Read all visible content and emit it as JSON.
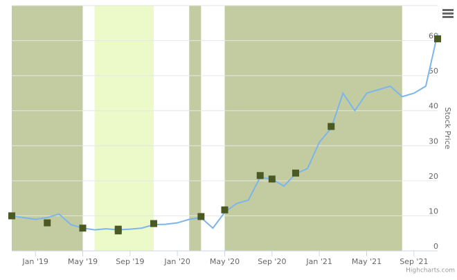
{
  "chart_data": {
    "type": "line",
    "y_axis_title": "Stock Price",
    "credits": "Highcharts.com",
    "xlim": [
      "2018-11",
      "2021-11"
    ],
    "xticks": [
      {
        "value": "2019-01",
        "label": "Jan '19"
      },
      {
        "value": "2019-05",
        "label": "May '19"
      },
      {
        "value": "2019-09",
        "label": "Sep '19"
      },
      {
        "value": "2020-01",
        "label": "Jan '20"
      },
      {
        "value": "2020-05",
        "label": "May '20"
      },
      {
        "value": "2020-09",
        "label": "Sep '20"
      },
      {
        "value": "2021-01",
        "label": "Jan '21"
      },
      {
        "value": "2021-05",
        "label": "May '21"
      },
      {
        "value": "2021-09",
        "label": "Sep '21"
      }
    ],
    "ylim": [
      0,
      70
    ],
    "yticks": [
      0,
      10,
      20,
      30,
      40,
      50,
      60
    ],
    "grid": true,
    "bands": [
      {
        "from": "2018-11",
        "to": "2019-05",
        "color": "#c2cca0"
      },
      {
        "from": "2019-06",
        "to": "2019-11",
        "color": "#ebfac8"
      },
      {
        "from": "2020-02",
        "to": "2020-03",
        "color": "#c2cca0"
      },
      {
        "from": "2020-05",
        "to": "2021-08",
        "color": "#c2cca0"
      }
    ],
    "series": [
      {
        "color": "#7cb5ec",
        "x": [
          "2018-11",
          "2018-12",
          "2019-01",
          "2019-02",
          "2019-03",
          "2019-04",
          "2019-05",
          "2019-06",
          "2019-07",
          "2019-08",
          "2019-09",
          "2019-10",
          "2019-11",
          "2019-12",
          "2020-01",
          "2020-02",
          "2020-03",
          "2020-04",
          "2020-05",
          "2020-06",
          "2020-07",
          "2020-08",
          "2020-09",
          "2020-10",
          "2020-11",
          "2020-12",
          "2021-01",
          "2021-02",
          "2021-03",
          "2021-04",
          "2021-05",
          "2021-06",
          "2021-07",
          "2021-08",
          "2021-09",
          "2021-10",
          "2021-11"
        ],
        "values": [
          10,
          9.5,
          9,
          9.5,
          10.5,
          7.5,
          6.5,
          6,
          6.3,
          6,
          6.2,
          6.5,
          7.5,
          7.6,
          8,
          9,
          9.5,
          6.5,
          11,
          13.5,
          14.5,
          21,
          20.5,
          18.5,
          22,
          23.5,
          31,
          35,
          45,
          40,
          45,
          46,
          47,
          44,
          45,
          47,
          62
        ]
      }
    ],
    "markers": {
      "color": "#4b5a23",
      "x": [
        "2018-11",
        "2019-02",
        "2019-05",
        "2019-08",
        "2019-08",
        "2019-11",
        "2020-03",
        "2020-05",
        "2020-08",
        "2020-09",
        "2020-11",
        "2021-02",
        "2021-11"
      ],
      "values": [
        10,
        8,
        6.5,
        6.2,
        5.7,
        7.8,
        9.8,
        11.7,
        21.5,
        20.5,
        22.2,
        35.5,
        60.5
      ]
    }
  }
}
